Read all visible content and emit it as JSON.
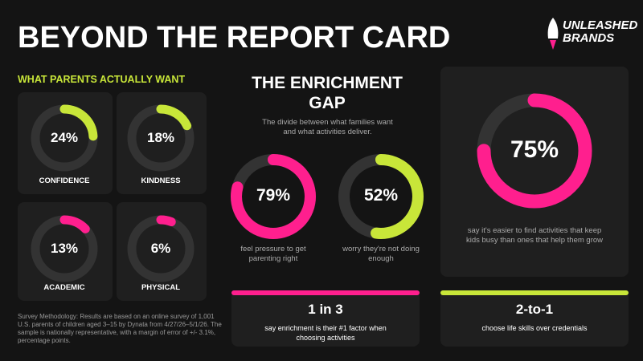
{
  "header": {
    "title": "BEYOND THE REPORT CARD",
    "logo": [
      "UNLEASHED",
      "BRANDS"
    ]
  },
  "wants": {
    "title": "WHAT PARENTS ACTUALLY WANT",
    "items": [
      {
        "label": "CONFIDENCE",
        "value": 24,
        "value_label": "24%",
        "color": "#c8e639"
      },
      {
        "label": "KINDNESS",
        "value": 18,
        "value_label": "18%",
        "color": "#c8e639"
      },
      {
        "label": "ACADEMIC",
        "value": 13,
        "value_label": "13%",
        "color": "#ff1f8e"
      },
      {
        "label": "PHYSICAL",
        "value": 6,
        "value_label": "6%",
        "color": "#ff1f8e"
      }
    ]
  },
  "gap": {
    "title": "THE ENRICHMENT GAP",
    "subtitle": "The divide between what families want and what activities deliver.",
    "items": [
      {
        "value": 79,
        "value_label": "79%",
        "caption": "feel pressure to get parenting right",
        "color": "#ff1f8e"
      },
      {
        "value": 52,
        "value_label": "52%",
        "caption": "worry they're not doing enough",
        "color": "#c8e639"
      }
    ]
  },
  "highlight": {
    "value": 75,
    "value_label": "75%",
    "caption": "say it's easier to find activities that keep kids busy than ones that help them grow",
    "color": "#ff1f8e"
  },
  "stats": [
    {
      "headline": "1 in 3",
      "caption": "say enrichment is their #1 factor when choosing activities",
      "color": "#ff1f8e"
    },
    {
      "headline": "2-to-1",
      "caption": "choose life skills over credentials",
      "color": "#c8e639"
    }
  ],
  "methodology": "Survey Methodology: Results are based on an online survey of 1,001 U.S. parents of children aged 3–15 by Dynata from 4/27/26–5/1/26. The sample is nationally representative, with a margin of error of +/- 3.1%, percentage points."
}
